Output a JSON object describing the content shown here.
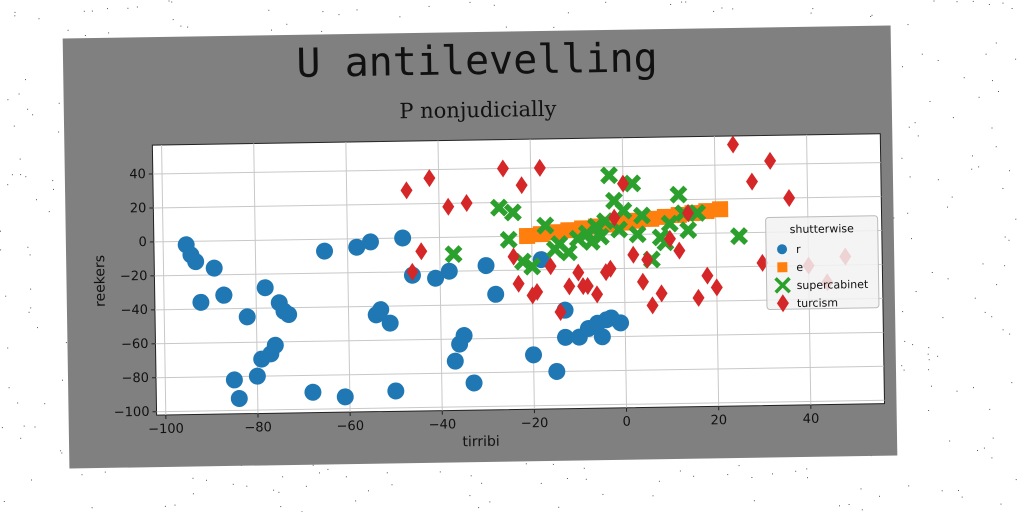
{
  "chart_data": {
    "type": "scatter",
    "title": "U antilevelling",
    "subtitle": "P nonjudicially",
    "xlabel": "tirribi",
    "ylabel": "reekers",
    "xlim": [
      -102,
      56
    ],
    "ylim": [
      -102,
      57
    ],
    "xticks": [
      -100,
      -80,
      -60,
      -40,
      -20,
      0,
      20,
      40
    ],
    "yticks": [
      -100,
      -80,
      -60,
      -40,
      -20,
      0,
      20,
      40
    ],
    "grid": true,
    "legend": {
      "title": "shutterwise",
      "placement": "right"
    },
    "series": [
      {
        "name": "r",
        "marker": "circle",
        "color": "#1f77b4",
        "x": [
          -95,
          -94,
          -93,
          -92,
          -89,
          -87,
          -85,
          -84,
          -82,
          -80,
          -79,
          -78,
          -77,
          -76,
          -75,
          -74,
          -73,
          -68,
          -65,
          -61,
          -58,
          -55,
          -54,
          -53,
          -51,
          -50,
          -48,
          -46,
          -41,
          -38,
          -37,
          -36,
          -35,
          -33,
          -30,
          -28,
          -20,
          -18,
          -15,
          -13,
          -13,
          -10,
          -8,
          -6,
          -5,
          -4,
          -3,
          -1,
          -87
        ],
        "y": [
          -2,
          -8,
          -12,
          -36,
          -16,
          -32,
          -82,
          -93,
          -45,
          -80,
          -70,
          -28,
          -67,
          -62,
          -37,
          -42,
          -44,
          -90,
          -7,
          -93,
          -5,
          -2,
          -45,
          -42,
          -50,
          -90,
          0,
          -22,
          -24,
          -20,
          -73,
          -63,
          -58,
          -86,
          -17,
          -34,
          -70,
          -14,
          -80,
          -44,
          -60,
          -60,
          -55,
          -52,
          -60,
          -50,
          -49,
          -52,
          -32
        ]
      },
      {
        "name": "e",
        "marker": "square",
        "color": "#ff7f0e",
        "x": [
          -21,
          -18,
          -15,
          -12,
          -9,
          -6,
          -3,
          0,
          3,
          6,
          9,
          12,
          15,
          18,
          21
        ],
        "y": [
          0,
          1,
          2,
          3,
          4,
          5,
          6,
          7,
          8,
          9,
          10,
          11,
          12,
          13,
          14
        ]
      },
      {
        "name": "supercabinet",
        "marker": "x",
        "color": "#2ca02c",
        "x": [
          -37,
          -27,
          -25,
          -24,
          -22,
          -20,
          -17,
          -15,
          -14,
          -12,
          -10,
          -8,
          -6,
          -5,
          -3,
          -2,
          0,
          2,
          4,
          6,
          8,
          10,
          12,
          14,
          16,
          25,
          -1,
          -7,
          -4,
          3,
          9,
          13
        ],
        "y": [
          -10,
          17,
          -2,
          14,
          -15,
          -18,
          6,
          -8,
          -5,
          -10,
          -2,
          1,
          5,
          -1,
          35,
          20,
          14,
          30,
          11,
          -15,
          -2,
          6,
          23,
          2,
          12,
          -2,
          3,
          -4,
          8,
          0,
          -5,
          12
        ]
      },
      {
        "name": "turcism",
        "marker": "diamond",
        "color": "#d62728",
        "x": [
          -47,
          -46,
          -42,
          -38,
          -34,
          -26,
          -24,
          -22,
          -20,
          -18,
          -16,
          -14,
          -12,
          -10,
          -8,
          -6,
          -4,
          -2,
          0,
          2,
          4,
          6,
          8,
          10,
          12,
          14,
          16,
          18,
          20,
          24,
          28,
          30,
          32,
          36,
          40,
          44,
          48,
          -44,
          -23,
          -19,
          -9,
          -3,
          5
        ],
        "y": [
          28,
          -20,
          35,
          18,
          20,
          40,
          -12,
          30,
          -35,
          40,
          -18,
          -45,
          -30,
          -22,
          -30,
          -35,
          -22,
          10,
          30,
          -12,
          -28,
          -42,
          -35,
          -3,
          -10,
          12,
          -38,
          -25,
          -32,
          52,
          30,
          -18,
          42,
          20,
          -20,
          -30,
          -15,
          -8,
          -28,
          -33,
          -30,
          -20,
          -15
        ]
      }
    ]
  }
}
